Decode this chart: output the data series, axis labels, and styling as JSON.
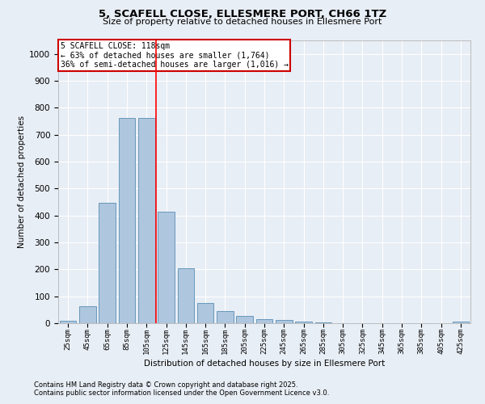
{
  "title1": "5, SCAFELL CLOSE, ELLESMERE PORT, CH66 1TZ",
  "title2": "Size of property relative to detached houses in Ellesmere Port",
  "xlabel": "Distribution of detached houses by size in Ellesmere Port",
  "ylabel": "Number of detached properties",
  "footnote1": "Contains HM Land Registry data © Crown copyright and database right 2025.",
  "footnote2": "Contains public sector information licensed under the Open Government Licence v3.0.",
  "categories": [
    "25sqm",
    "45sqm",
    "65sqm",
    "85sqm",
    "105sqm",
    "125sqm",
    "145sqm",
    "165sqm",
    "185sqm",
    "205sqm",
    "225sqm",
    "245sqm",
    "265sqm",
    "285sqm",
    "305sqm",
    "325sqm",
    "345sqm",
    "365sqm",
    "385sqm",
    "405sqm",
    "425sqm"
  ],
  "values": [
    10,
    62,
    448,
    762,
    762,
    415,
    205,
    75,
    45,
    28,
    15,
    12,
    5,
    2,
    1,
    0,
    0,
    0,
    0,
    0,
    5
  ],
  "bar_color": "#aec6de",
  "bar_edgecolor": "#6699bb",
  "annotation_line1": "5 SCAFELL CLOSE: 118sqm",
  "annotation_line2": "← 63% of detached houses are smaller (1,764)",
  "annotation_line3": "36% of semi-detached houses are larger (1,016) →",
  "annotation_box_color": "#cc0000",
  "ylim": [
    0,
    1050
  ],
  "yticks": [
    0,
    100,
    200,
    300,
    400,
    500,
    600,
    700,
    800,
    900,
    1000
  ],
  "bg_color": "#e8eef5",
  "plot_bg_color": "#e8eef5",
  "grid_color": "#ffffff"
}
